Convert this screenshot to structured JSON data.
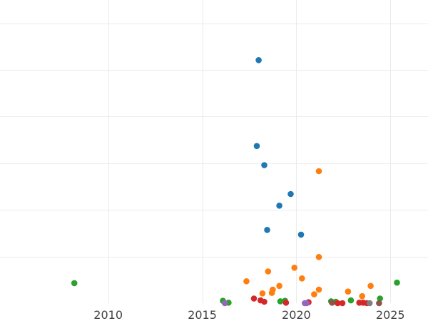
{
  "chart_data": {
    "type": "scatter",
    "title": "",
    "xlabel": "",
    "ylabel": "",
    "grid": true,
    "xlim": [
      2004.25,
      2027.0
    ],
    "ylim": [
      0,
      65
    ],
    "xticks": [
      2010,
      2015,
      2020,
      2025
    ],
    "xtick_labels": [
      "2010",
      "2015",
      "2020",
      "2025"
    ],
    "ygrid_values": [
      10,
      20,
      30,
      40,
      50,
      60
    ],
    "series": [
      {
        "color": "#1f77b4",
        "points": [
          [
            2018.0,
            52.1
          ],
          [
            2017.9,
            33.7
          ],
          [
            2018.3,
            29.6
          ],
          [
            2019.7,
            23.4
          ],
          [
            2019.1,
            20.9
          ],
          [
            2018.45,
            15.7
          ],
          [
            2020.25,
            14.7
          ]
        ]
      },
      {
        "color": "#ff7f0e",
        "points": [
          [
            2021.2,
            28.3
          ],
          [
            2021.2,
            9.9
          ],
          [
            2019.9,
            7.6
          ],
          [
            2018.5,
            6.8
          ],
          [
            2020.3,
            5.3
          ],
          [
            2017.35,
            4.7
          ],
          [
            2023.95,
            3.7
          ],
          [
            2019.1,
            3.7
          ],
          [
            2018.75,
            2.9
          ],
          [
            2021.2,
            2.9
          ],
          [
            2022.75,
            2.5
          ],
          [
            2018.7,
            2.2
          ],
          [
            2018.2,
            2.1
          ],
          [
            2020.95,
            1.9
          ],
          [
            2023.5,
            1.5
          ]
        ]
      },
      {
        "color": "#2ca02c",
        "points": [
          [
            2008.2,
            4.3
          ],
          [
            2025.35,
            4.4
          ],
          [
            2016.1,
            0.5
          ],
          [
            2016.4,
            0.1
          ],
          [
            2019.15,
            0.4
          ],
          [
            2019.4,
            0.5
          ],
          [
            2022.1,
            0.3
          ],
          [
            2022.9,
            0.6
          ],
          [
            2024.45,
            1.0
          ],
          [
            2021.85,
            0.4
          ]
        ]
      },
      {
        "color": "#d62728",
        "points": [
          [
            2017.75,
            1.0
          ],
          [
            2018.1,
            0.6
          ],
          [
            2018.3,
            0.3
          ],
          [
            2019.45,
            0.1
          ],
          [
            2020.65,
            0.2
          ],
          [
            2022.2,
            0.0
          ],
          [
            2022.45,
            0.0
          ],
          [
            2023.35,
            0.1
          ],
          [
            2023.55,
            0.1
          ],
          [
            2023.75,
            0.0
          ]
        ]
      },
      {
        "color": "#9467bd",
        "points": [
          [
            2016.2,
            0.0
          ],
          [
            2020.45,
            0.0
          ],
          [
            2020.55,
            0.0
          ]
        ]
      },
      {
        "color": "#8c564b",
        "points": [
          [
            2021.9,
            0.1
          ],
          [
            2024.4,
            0.0
          ]
        ]
      },
      {
        "color": "#7f7f7f",
        "points": [
          [
            2023.9,
            0.0
          ]
        ]
      }
    ]
  }
}
